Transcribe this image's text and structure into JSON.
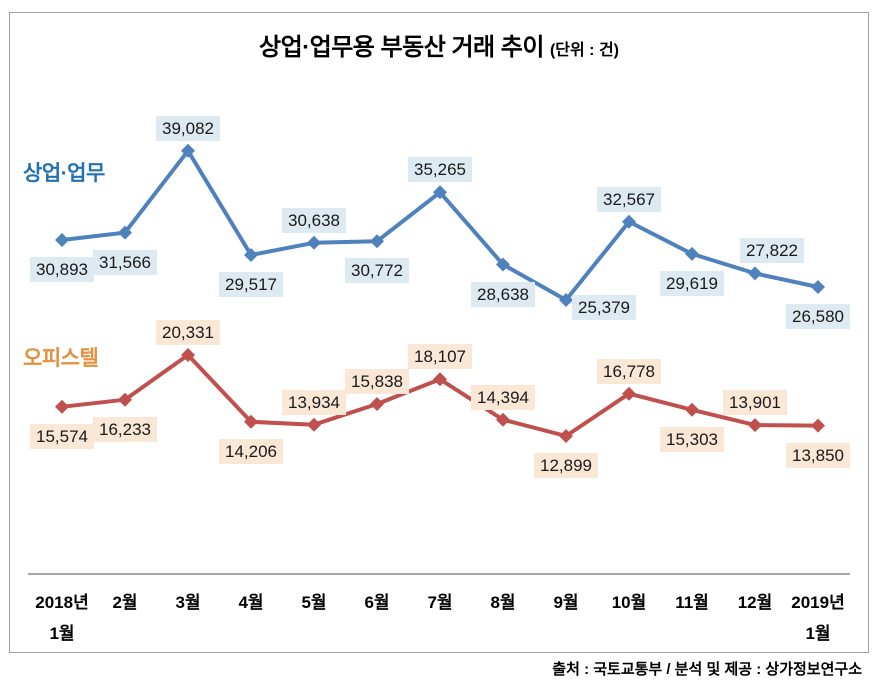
{
  "title": {
    "main": "상업·업무용 부동산 거래 추이",
    "unit": "(단위 : 건)"
  },
  "footer": {
    "source": "출처 : 국토교통부 / 분석 및 제공 : 상가정보연구소"
  },
  "colors": {
    "commercial_line": "#4F81BD",
    "commercial_label_bg": "#DEEAF2",
    "commercial_name_text": "#2472B2",
    "officetel_line": "#C0504D",
    "officetel_label_bg": "#FAE7D5",
    "officetel_name_text": "#E4903E",
    "frame_border": "#A0A0A0",
    "axis_line": "#A6A6A6"
  },
  "chart_data": {
    "type": "line",
    "title": "상업·업무용 부동산 거래 추이",
    "unit_label": "(단위 : 건)",
    "xlabel": "",
    "ylabel": "",
    "ylim": [
      0,
      42000
    ],
    "grid": false,
    "legend_position": "inline-left-of-each-series",
    "categories": [
      [
        "2018년",
        "1월"
      ],
      [
        "2월"
      ],
      [
        "3월"
      ],
      [
        "4월"
      ],
      [
        "5월"
      ],
      [
        "6월"
      ],
      [
        "7월"
      ],
      [
        "8월"
      ],
      [
        "9월"
      ],
      [
        "10월"
      ],
      [
        "11월"
      ],
      [
        "12월"
      ],
      [
        "2019년",
        "1월"
      ]
    ],
    "series": [
      {
        "name": "상업·업무",
        "color": "#4F81BD",
        "label_bg": "#DEEAF2",
        "name_color": "#2472B2",
        "values": [
          30893,
          31566,
          39082,
          29517,
          30638,
          30772,
          35265,
          28638,
          25379,
          32567,
          29619,
          27822,
          26580
        ],
        "label_positions": [
          "below",
          "below",
          "above",
          "below",
          "above",
          "below",
          "above",
          "below",
          "below-right",
          "above",
          "below",
          "above-right",
          "below"
        ]
      },
      {
        "name": "오피스텔",
        "color": "#C0504D",
        "label_bg": "#FAE7D5",
        "name_color": "#E4903E",
        "values": [
          15574,
          16233,
          20331,
          14206,
          13934,
          15838,
          18107,
          14394,
          12899,
          16778,
          15303,
          13901,
          13850
        ],
        "label_positions": [
          "below",
          "below",
          "above",
          "below",
          "above",
          "above",
          "above",
          "above",
          "below",
          "above",
          "below",
          "above",
          "below"
        ]
      }
    ]
  }
}
